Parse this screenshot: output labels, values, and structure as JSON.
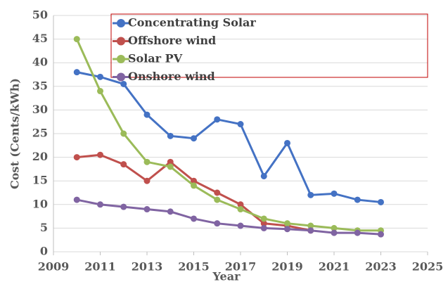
{
  "chart_data": {
    "type": "line",
    "x": [
      2010,
      2011,
      2012,
      2013,
      2014,
      2015,
      2016,
      2017,
      2018,
      2019,
      2020,
      2021,
      2022,
      2023
    ],
    "series": [
      {
        "name": "Concentrating Solar",
        "color": "#4472c4",
        "values": [
          38,
          37,
          35.5,
          29,
          24.5,
          24,
          28,
          27,
          16,
          23,
          12,
          12.3,
          11,
          10.5
        ]
      },
      {
        "name": "Offshore wind",
        "color": "#c0504d",
        "values": [
          20,
          20.5,
          18.5,
          15,
          19,
          15,
          12.5,
          10,
          6,
          5.5,
          4.5,
          null,
          null,
          null
        ]
      },
      {
        "name": "Solar PV",
        "color": "#9bbb59",
        "values": [
          45,
          34,
          25,
          19,
          18,
          14,
          11,
          9,
          7,
          6,
          5.5,
          5,
          4.5,
          4.5
        ]
      },
      {
        "name": "Onshore wind",
        "color": "#8064a2",
        "values": [
          11,
          10,
          9.5,
          9,
          8.5,
          7,
          6,
          5.5,
          5,
          4.8,
          4.5,
          4,
          4,
          3.7
        ]
      }
    ],
    "xlabel": "Year",
    "ylabel": "Cost (Cents/kWh)",
    "xlim": [
      2009,
      2025
    ],
    "xticks": [
      2009,
      2011,
      2013,
      2015,
      2017,
      2019,
      2021,
      2023,
      2025
    ],
    "ylim": [
      0,
      50
    ],
    "yticks": [
      0,
      5,
      10,
      15,
      20,
      25,
      30,
      35,
      40,
      45,
      50
    ],
    "grid": true
  }
}
